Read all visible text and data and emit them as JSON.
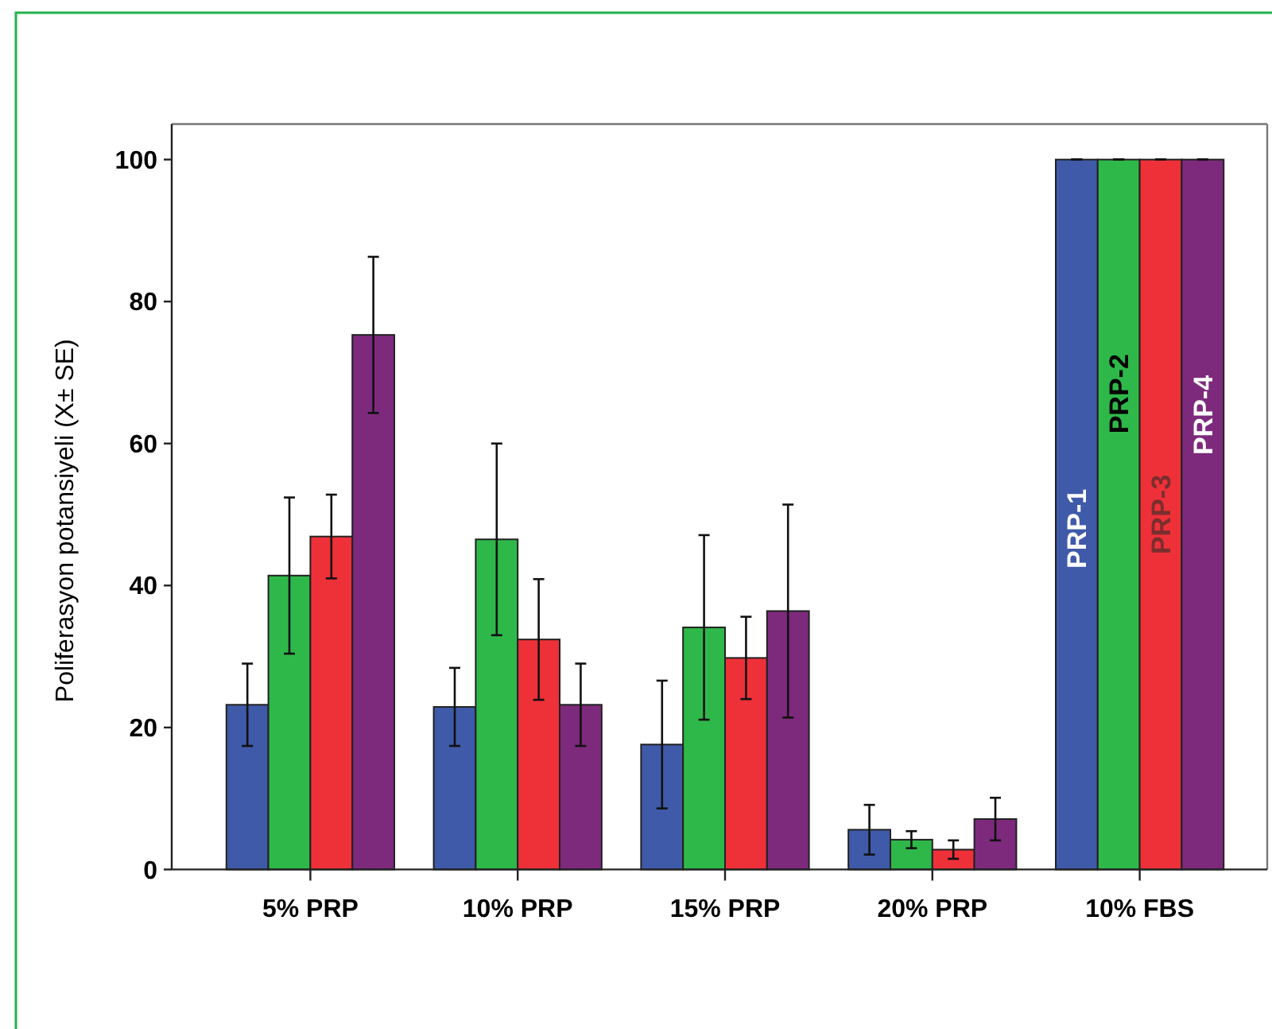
{
  "chart_data": {
    "type": "bar",
    "ylabel": "Poliferasyon potansiyeli (X± SE)",
    "categories": [
      "5% PRP",
      "10% PRP",
      "15% PRP",
      "20% PRP",
      "10% FBS"
    ],
    "ylim": [
      0,
      105
    ],
    "yticks": [
      0,
      20,
      40,
      60,
      80,
      100
    ],
    "grid": false,
    "series": [
      {
        "name": "PRP-1",
        "color": "#3f5aa8",
        "values": [
          23.2,
          22.9,
          17.6,
          5.6,
          100
        ],
        "errors": [
          5.8,
          5.5,
          9,
          3.5,
          0
        ]
      },
      {
        "name": "PRP-2",
        "color": "#2fb84a",
        "values": [
          41.4,
          46.5,
          34.1,
          4.2,
          100
        ],
        "errors": [
          11,
          13.5,
          13,
          1.2,
          0
        ]
      },
      {
        "name": "PRP-3",
        "color": "#ee3139",
        "values": [
          46.9,
          32.4,
          29.8,
          2.8,
          100
        ],
        "errors": [
          5.9,
          8.5,
          5.8,
          1.3,
          0
        ]
      },
      {
        "name": "PRP-4",
        "color": "#7d2a7d",
        "values": [
          75.3,
          23.2,
          36.4,
          7.1,
          100
        ],
        "errors": [
          11,
          5.8,
          15,
          3,
          0
        ]
      }
    ]
  }
}
